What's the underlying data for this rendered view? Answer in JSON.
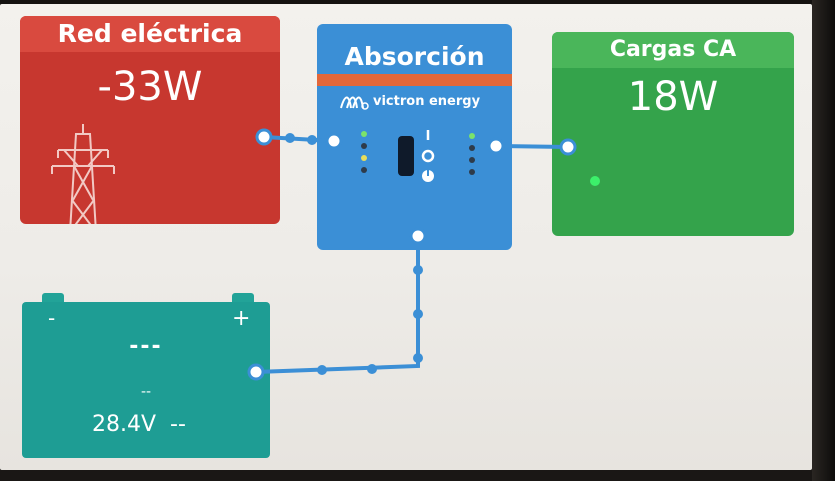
{
  "grid": {
    "title": "Red eléctrica",
    "power": "-33W",
    "icon": "power-tower-icon",
    "color": "#c7372f"
  },
  "inverter": {
    "state": "Absorción",
    "brand": "victron energy",
    "logo": "victron-logo-icon",
    "color": "#3b8fd6"
  },
  "ac_loads": {
    "title": "Cargas CA",
    "power": "18W",
    "color": "#34a34b"
  },
  "battery": {
    "negative_label": "-",
    "positive_label": "+",
    "soc": "---",
    "time_remaining": "--",
    "voltage": "28.4V",
    "current": "--",
    "color": "#1e9d94"
  },
  "wire_color": "#3b8fd6"
}
